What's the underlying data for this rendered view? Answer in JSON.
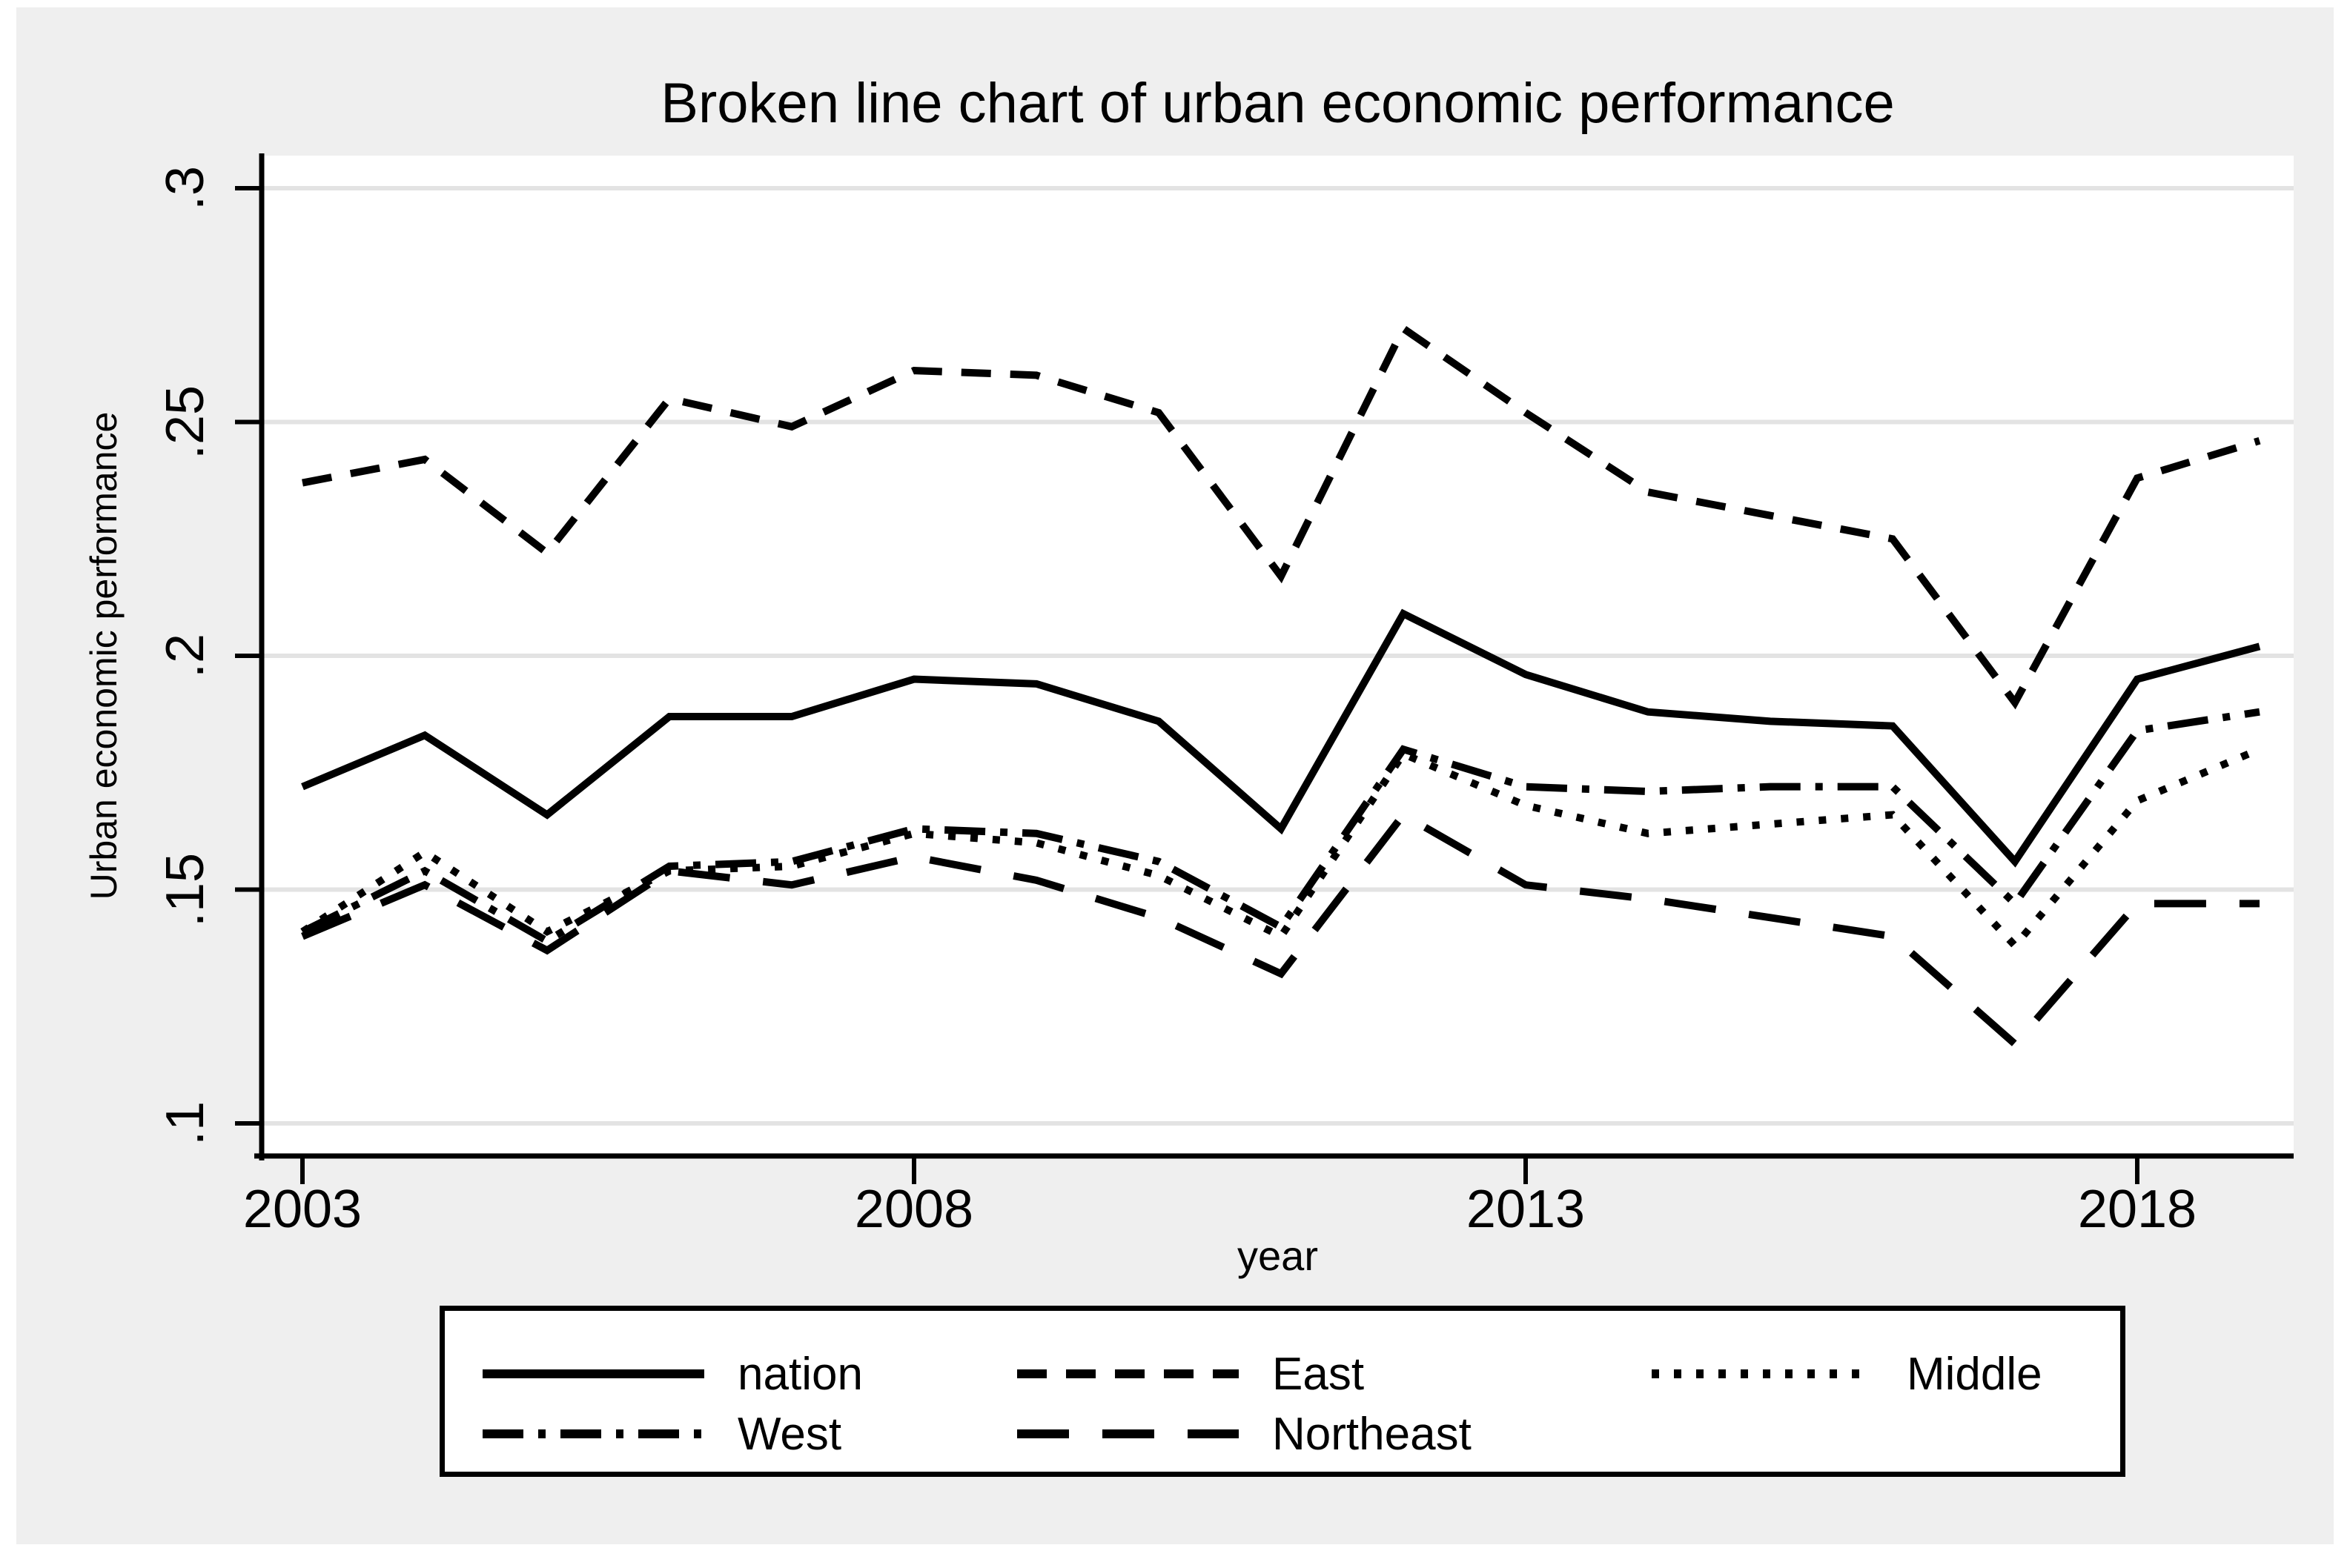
{
  "chart_data": {
    "type": "line",
    "title": "Broken line chart of urban economic performance",
    "xlabel": "year",
    "ylabel": "Urban economic performance",
    "grid": "horizontal",
    "legend_position": "bottom",
    "xlim": [
      2002.7,
      2019.3
    ],
    "ylim": [
      0.1,
      0.3
    ],
    "x": [
      2003,
      2004,
      2005,
      2006,
      2007,
      2008,
      2009,
      2010,
      2011,
      2012,
      2013,
      2014,
      2015,
      2016,
      2017,
      2018,
      2019
    ],
    "series": [
      {
        "name": "nation",
        "style": "solid",
        "values": [
          0.172,
          0.183,
          0.166,
          0.187,
          0.187,
          0.195,
          0.194,
          0.186,
          0.163,
          0.209,
          0.196,
          0.188,
          0.186,
          0.185,
          0.156,
          0.195,
          0.202
        ]
      },
      {
        "name": "East",
        "style": "dashed",
        "values": [
          0.237,
          0.242,
          0.222,
          0.255,
          0.249,
          0.261,
          0.26,
          0.252,
          0.217,
          0.27,
          0.252,
          0.235,
          0.23,
          0.225,
          0.19,
          0.238,
          0.246
        ]
      },
      {
        "name": "Middle",
        "style": "dotted",
        "values": [
          0.141,
          0.158,
          0.141,
          0.154,
          0.155,
          0.162,
          0.16,
          0.153,
          0.14,
          0.179,
          0.168,
          0.162,
          0.164,
          0.166,
          0.138,
          0.169,
          0.18
        ]
      },
      {
        "name": "West",
        "style": "dashdot",
        "values": [
          0.141,
          0.154,
          0.139,
          0.155,
          0.156,
          0.163,
          0.162,
          0.156,
          0.142,
          0.18,
          0.172,
          0.171,
          0.172,
          0.172,
          0.147,
          0.184,
          0.188
        ]
      },
      {
        "name": "Northeast",
        "style": "longdash",
        "values": [
          0.14,
          0.151,
          0.137,
          0.154,
          0.151,
          0.157,
          0.152,
          0.144,
          0.132,
          0.166,
          0.151,
          0.148,
          0.144,
          0.14,
          0.117,
          0.147,
          0.147
        ]
      }
    ],
    "x_axis": {
      "ticks": [
        {
          "value": 2003,
          "label": "2003"
        },
        {
          "value": 2008,
          "label": "2008"
        },
        {
          "value": 2013,
          "label": "2013"
        },
        {
          "value": 2018,
          "label": "2018"
        }
      ]
    },
    "y_axis": {
      "ticks": [
        {
          "value": 0.3,
          "label": ".3"
        },
        {
          "value": 0.25,
          "label": ".25"
        },
        {
          "value": 0.2,
          "label": ".2"
        },
        {
          "value": 0.15,
          "label": ".15"
        },
        {
          "value": 0.1,
          "label": ".1"
        }
      ]
    },
    "colors": {
      "line": "#000000",
      "grid": "#e3e3e3",
      "figure_bg": "#efefef",
      "plot_bg": "#ffffff",
      "text": "#000000"
    }
  }
}
